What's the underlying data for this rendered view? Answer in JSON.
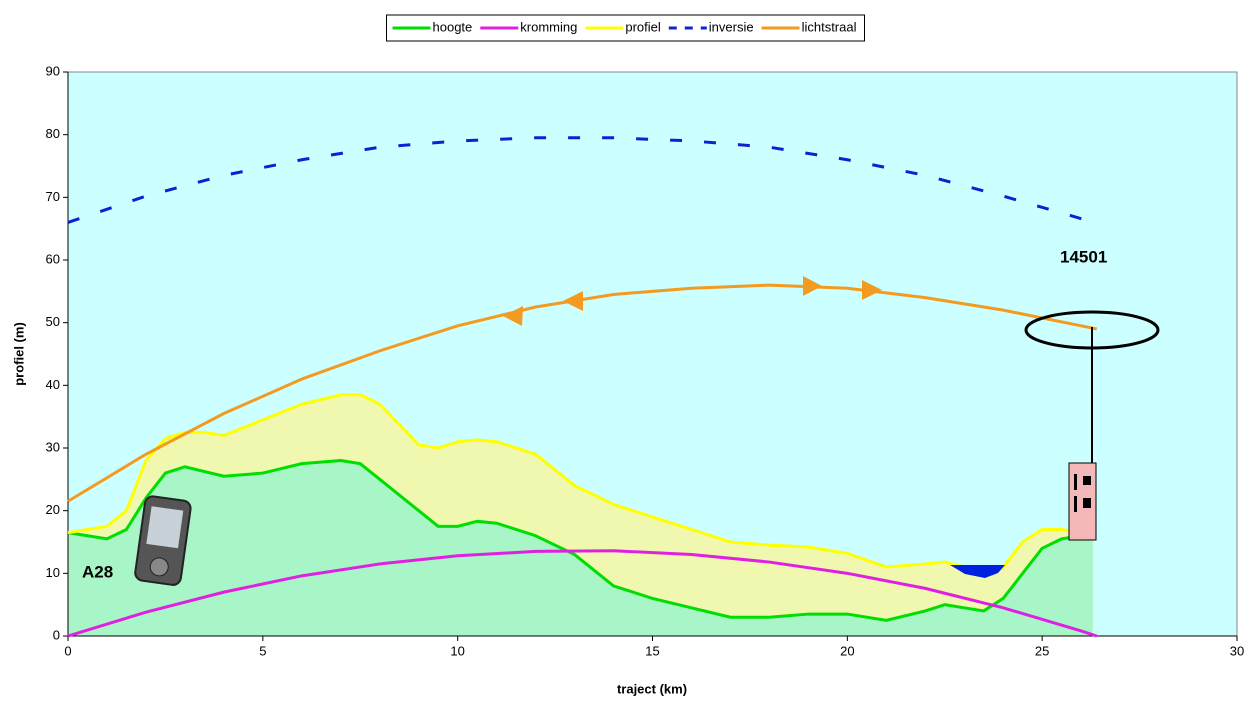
{
  "chart_data": {
    "type": "line",
    "xlabel": "traject (km)",
    "ylabel": "profiel (m)",
    "xlim": [
      0,
      30
    ],
    "xticks": [
      0,
      5,
      10,
      15,
      20,
      25,
      30
    ],
    "ylim": [
      0,
      90
    ],
    "yticks": [
      0,
      10,
      20,
      30,
      40,
      50,
      60,
      70,
      80,
      90
    ],
    "background": "#ccffff",
    "legend": "top",
    "annotations": [
      "A28",
      "14501"
    ],
    "series": [
      {
        "name": "hoogte",
        "color": "#00dd00",
        "fill": "#a8f5c8",
        "x": [
          0,
          0.5,
          1,
          1.5,
          2,
          2.5,
          3,
          4,
          5,
          6,
          7,
          7.5,
          8,
          9,
          9.5,
          10,
          10.5,
          11,
          12,
          13,
          14,
          15,
          16,
          17,
          18,
          19,
          20,
          21,
          22,
          22.5,
          23,
          23.5,
          24,
          24.5,
          25,
          25.5,
          26,
          26.3
        ],
        "values": [
          16.5,
          16,
          15.5,
          17,
          22,
          26,
          27,
          25.5,
          26,
          27.5,
          28,
          27.5,
          25,
          20,
          17.5,
          17.5,
          18.3,
          18,
          16,
          13,
          8,
          6,
          4.5,
          3,
          3,
          3.5,
          3.5,
          2.5,
          4,
          5,
          4.5,
          4,
          6,
          10,
          14,
          15.5,
          16,
          16
        ]
      },
      {
        "name": "kromming",
        "color": "#e020e0",
        "x": [
          0,
          2,
          4,
          6,
          8,
          10,
          12,
          14,
          16,
          18,
          20,
          22,
          24,
          26,
          26.4
        ],
        "values": [
          0,
          3.8,
          7,
          9.6,
          11.5,
          12.8,
          13.5,
          13.6,
          13,
          11.8,
          10,
          7.6,
          4.5,
          0.8,
          0
        ]
      },
      {
        "name": "profiel",
        "color": "#ffff00",
        "fill": "#f0f8b0",
        "x": [
          0,
          1,
          1.5,
          2,
          2.5,
          3,
          3.5,
          4,
          5,
          6,
          7,
          7.5,
          8,
          9,
          9.5,
          10,
          10.5,
          11,
          12,
          13,
          14,
          15,
          16,
          17,
          18,
          19,
          20,
          21,
          22,
          22.5,
          23,
          23.5,
          24,
          24.5,
          25,
          25.5,
          26,
          26.3
        ],
        "values": [
          16.5,
          17.5,
          20,
          28,
          31.5,
          32.5,
          32.5,
          32,
          34.5,
          37,
          38.5,
          38.5,
          37,
          30.5,
          30,
          31,
          31.3,
          31,
          29,
          24,
          21,
          19,
          17,
          15,
          14.5,
          14.2,
          13.2,
          11,
          11.5,
          11.8,
          11,
          9.5,
          11,
          15,
          17,
          17,
          16.5,
          16.5
        ]
      },
      {
        "name": "inversie",
        "color": "#1020d0",
        "linestyle": "dashed",
        "x": [
          0,
          2,
          4,
          6,
          8,
          10,
          12,
          14,
          16,
          18,
          20,
          22,
          24,
          26,
          26.4
        ],
        "values": [
          66,
          70.2,
          73.5,
          76,
          78,
          79,
          79.5,
          79.5,
          79,
          78,
          76,
          73.5,
          70.2,
          66.6,
          66
        ]
      },
      {
        "name": "lichtstraal",
        "color": "#f39a20",
        "x": [
          0,
          2,
          4,
          6,
          8,
          10,
          12,
          14,
          16,
          18,
          20,
          22,
          24,
          26,
          26.4
        ],
        "values": [
          21.5,
          29,
          35.5,
          41,
          45.5,
          49.5,
          52.5,
          54.5,
          55.5,
          56,
          55.5,
          54,
          52,
          49.5,
          49
        ]
      }
    ]
  }
}
